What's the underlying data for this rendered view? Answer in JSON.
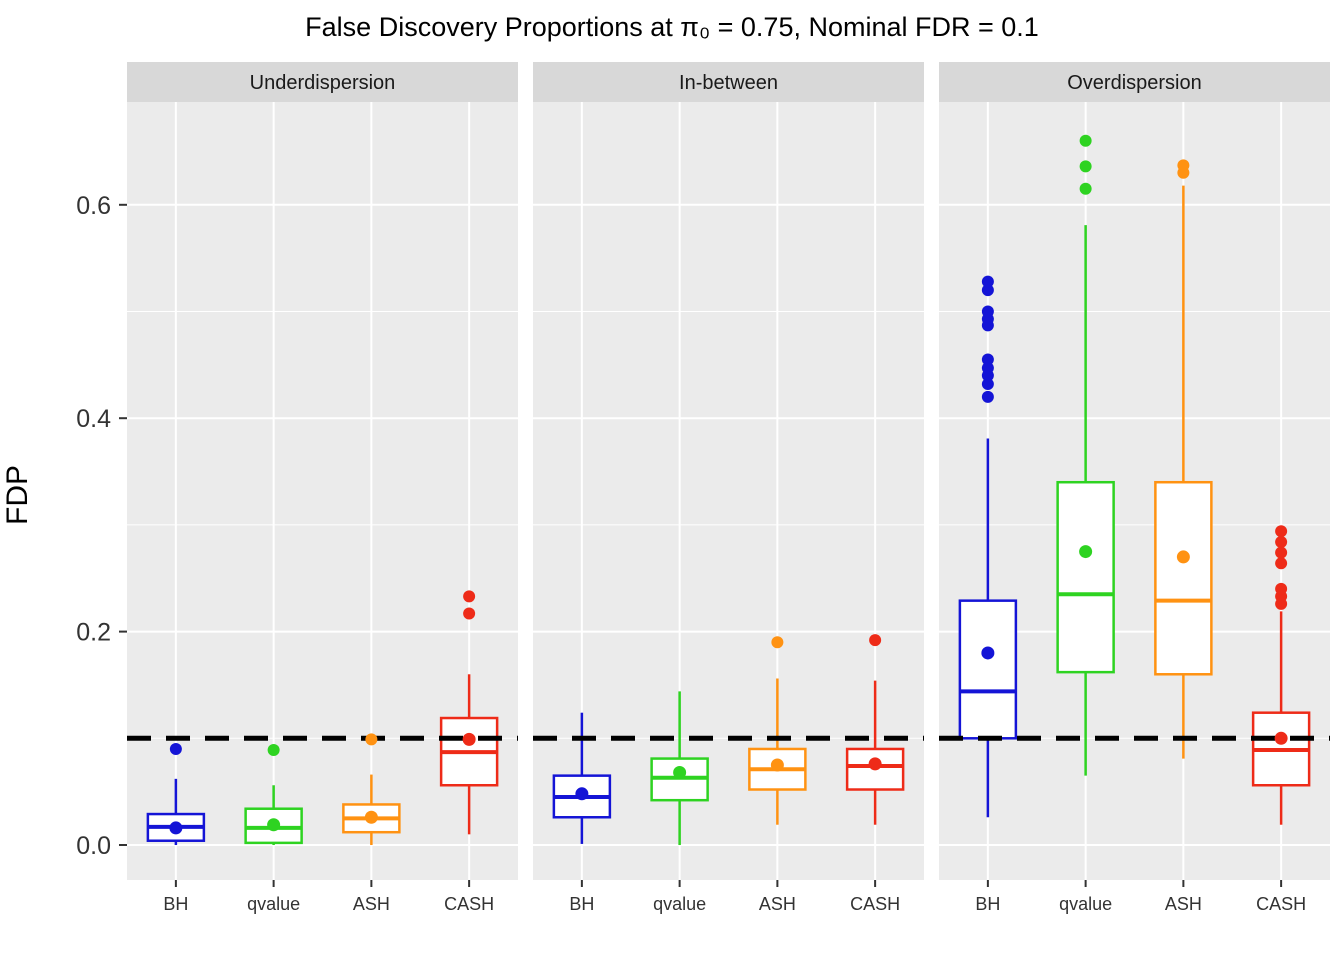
{
  "chart_data": {
    "type": "boxplot",
    "title": "False Discovery Proportions at π₀ = 0.75, Nominal FDR = 0.1",
    "ylabel": "FDP",
    "ylim": [
      -0.033,
      0.696
    ],
    "yticks": [
      0.0,
      0.2,
      0.4,
      0.6
    ],
    "ytick_labels": [
      "0.0",
      "0.2",
      "0.4",
      "0.6"
    ],
    "minor_yticks": [
      0.1,
      0.3,
      0.5
    ],
    "nominal_fdr_line": 0.1,
    "grid": true,
    "panel_bg": "#EBEBEB",
    "strip_bg": "#D8D8D8",
    "gridline_color": "#FFFFFF",
    "dashed_line_color": "#000000",
    "methods": [
      {
        "name": "BH",
        "color": "#1414D6"
      },
      {
        "name": "qvalue",
        "color": "#2ED321"
      },
      {
        "name": "ASH",
        "color": "#FF9212"
      },
      {
        "name": "CASH",
        "color": "#EE2B18"
      }
    ],
    "facets": [
      {
        "label": "Underdispersion",
        "boxes": [
          {
            "method": "BH",
            "whisker_low": 0.0,
            "q1": 0.004,
            "median": 0.017,
            "q3": 0.029,
            "whisker_high": 0.062,
            "mean": 0.016,
            "outliers": [
              0.09
            ]
          },
          {
            "method": "qvalue",
            "whisker_low": 0.0,
            "q1": 0.002,
            "median": 0.016,
            "q3": 0.034,
            "whisker_high": 0.056,
            "mean": 0.019,
            "outliers": [
              0.089
            ]
          },
          {
            "method": "ASH",
            "whisker_low": 0.0,
            "q1": 0.012,
            "median": 0.025,
            "q3": 0.038,
            "whisker_high": 0.066,
            "mean": 0.026,
            "outliers": [
              0.099
            ]
          },
          {
            "method": "CASH",
            "whisker_low": 0.01,
            "q1": 0.056,
            "median": 0.087,
            "q3": 0.119,
            "whisker_high": 0.16,
            "mean": 0.099,
            "outliers": [
              0.217,
              0.233
            ]
          }
        ]
      },
      {
        "label": "In-between",
        "boxes": [
          {
            "method": "BH",
            "whisker_low": 0.001,
            "q1": 0.026,
            "median": 0.045,
            "q3": 0.065,
            "whisker_high": 0.124,
            "mean": 0.048,
            "outliers": []
          },
          {
            "method": "qvalue",
            "whisker_low": 0.0,
            "q1": 0.042,
            "median": 0.063,
            "q3": 0.081,
            "whisker_high": 0.144,
            "mean": 0.068,
            "outliers": []
          },
          {
            "method": "ASH",
            "whisker_low": 0.019,
            "q1": 0.052,
            "median": 0.071,
            "q3": 0.09,
            "whisker_high": 0.156,
            "mean": 0.075,
            "outliers": [
              0.19
            ]
          },
          {
            "method": "CASH",
            "whisker_low": 0.019,
            "q1": 0.052,
            "median": 0.074,
            "q3": 0.09,
            "whisker_high": 0.154,
            "mean": 0.076,
            "outliers": [
              0.192
            ]
          }
        ]
      },
      {
        "label": "Overdispersion",
        "boxes": [
          {
            "method": "BH",
            "whisker_low": 0.026,
            "q1": 0.1,
            "median": 0.144,
            "q3": 0.229,
            "whisker_high": 0.381,
            "mean": 0.18,
            "outliers": [
              0.42,
              0.432,
              0.44,
              0.447,
              0.455,
              0.487,
              0.493,
              0.5,
              0.52,
              0.528
            ]
          },
          {
            "method": "qvalue",
            "whisker_low": 0.065,
            "q1": 0.162,
            "median": 0.235,
            "q3": 0.34,
            "whisker_high": 0.581,
            "mean": 0.275,
            "outliers": [
              0.615,
              0.636,
              0.66
            ]
          },
          {
            "method": "ASH",
            "whisker_low": 0.081,
            "q1": 0.16,
            "median": 0.229,
            "q3": 0.34,
            "whisker_high": 0.618,
            "mean": 0.27,
            "outliers": [
              0.63,
              0.637
            ]
          },
          {
            "method": "CASH",
            "whisker_low": 0.019,
            "q1": 0.056,
            "median": 0.089,
            "q3": 0.124,
            "whisker_high": 0.219,
            "mean": 0.1,
            "outliers": [
              0.226,
              0.233,
              0.24,
              0.264,
              0.274,
              0.284,
              0.294
            ]
          }
        ]
      }
    ]
  }
}
